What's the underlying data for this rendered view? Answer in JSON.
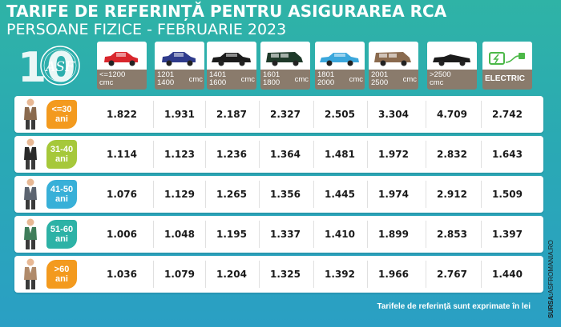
{
  "header": {
    "title": "TARIFE DE REFERINȚĂ PENTRU ASIGURAREA RCA",
    "subtitle": "PERSOANE FIZICE - FEBRUARIE 2023"
  },
  "logo": {
    "numeral": "10",
    "brand": "ASF"
  },
  "vehicles": [
    {
      "line1": "<=1200",
      "line2": "cmc",
      "unit": "",
      "color": "#d9262c",
      "type": "hatch"
    },
    {
      "line1": "1201",
      "line2": "1400",
      "unit": "cmc",
      "color": "#2f3b8c",
      "type": "hatch"
    },
    {
      "line1": "1401",
      "line2": "1600",
      "unit": "cmc",
      "color": "#1b1b1b",
      "type": "sedan"
    },
    {
      "line1": "1601",
      "line2": "1800",
      "unit": "cmc",
      "color": "#1f3a2a",
      "type": "suv"
    },
    {
      "line1": "1801",
      "line2": "2000",
      "unit": "cmc",
      "color": "#3ba7dc",
      "type": "sedan"
    },
    {
      "line1": "2001",
      "line2": "2500",
      "unit": "cmc",
      "color": "#8a6a4e",
      "type": "van"
    },
    {
      "line1": ">2500",
      "line2": "cmc",
      "unit": "",
      "color": "#1b1b1b",
      "type": "cabrio"
    },
    {
      "line1": "ELECTRIC",
      "line2": "",
      "unit": "",
      "color": "#4cb848",
      "type": "electric"
    }
  ],
  "rows": [
    {
      "age": "<=30\nani",
      "badge_color": "#f39a1e",
      "suit": "#8a6a4e",
      "values": [
        "1.822",
        "1.931",
        "2.187",
        "2.327",
        "2.505",
        "3.304",
        "4.709",
        "2.742"
      ]
    },
    {
      "age": "31-40\nani",
      "badge_color": "#a6c83a",
      "suit": "#2a2a2a",
      "values": [
        "1.114",
        "1.123",
        "1.236",
        "1.364",
        "1.481",
        "1.972",
        "2.832",
        "1.643"
      ]
    },
    {
      "age": "41-50\nani",
      "badge_color": "#38b0d8",
      "suit": "#5c6470",
      "values": [
        "1.076",
        "1.129",
        "1.265",
        "1.356",
        "1.445",
        "1.974",
        "2.912",
        "1.509"
      ]
    },
    {
      "age": "51-60\nani",
      "badge_color": "#2db2a6",
      "suit": "#3f7d5a",
      "values": [
        "1.006",
        "1.048",
        "1.195",
        "1.337",
        "1.410",
        "1.899",
        "2.853",
        "1.397"
      ]
    },
    {
      "age": ">60\nani",
      "badge_color": "#f39a1e",
      "suit": "#b08a6a",
      "values": [
        "1.036",
        "1.079",
        "1.204",
        "1.325",
        "1.392",
        "1.966",
        "2.767",
        "1.440"
      ]
    }
  ],
  "footnote": "Tarifele de referință sunt exprimate în lei",
  "source": {
    "label": "SURSA:",
    "value": "ASFROMANIA.RO"
  }
}
